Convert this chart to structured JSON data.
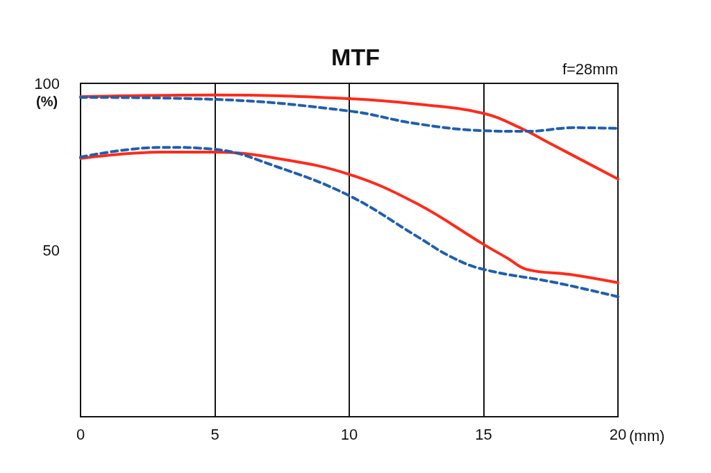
{
  "chart_data": {
    "type": "line",
    "title": "MTF",
    "xlabel": "(mm)",
    "ylabel": "(%)",
    "annotations": [
      "f=28mm"
    ],
    "xlim": [
      0,
      20
    ],
    "xticks": [
      0,
      5,
      10,
      15,
      20
    ],
    "ylim": [
      0,
      100
    ],
    "yticks": [
      50,
      100
    ],
    "grid": "x",
    "marker": "none",
    "series": [
      {
        "color": "#ff2a1a",
        "line_style": "solid",
        "x": [
          0,
          5,
          10,
          12.5,
          15,
          16.4,
          17.4,
          20
        ],
        "values": [
          96,
          96.5,
          95.4,
          93.8,
          91,
          86.5,
          82.3,
          71.3
        ]
      },
      {
        "color": "#1f5fb0",
        "line_style": "dashed",
        "x": [
          0,
          5,
          10,
          12.5,
          15,
          16.6,
          18.4,
          20
        ],
        "values": [
          95.8,
          95.2,
          91.7,
          87.9,
          85.8,
          85.6,
          86.7,
          86.5
        ]
      },
      {
        "color": "#ff2a1a",
        "line_style": "solid",
        "x": [
          0,
          3,
          5,
          7.3,
          10,
          12.5,
          15,
          15.9,
          16.6,
          18.2,
          20
        ],
        "values": [
          77.5,
          79.4,
          79.4,
          77.5,
          72.7,
          64,
          51.7,
          47.5,
          44.2,
          42.7,
          40.2
        ]
      },
      {
        "color": "#1f5fb0",
        "line_style": "dashed",
        "x": [
          0,
          3,
          5,
          7.3,
          10,
          12.5,
          13.8,
          15,
          17.7,
          20
        ],
        "values": [
          77.9,
          80.8,
          80.2,
          75,
          66.3,
          54.2,
          47.9,
          44.2,
          40.2,
          36
        ]
      }
    ]
  }
}
